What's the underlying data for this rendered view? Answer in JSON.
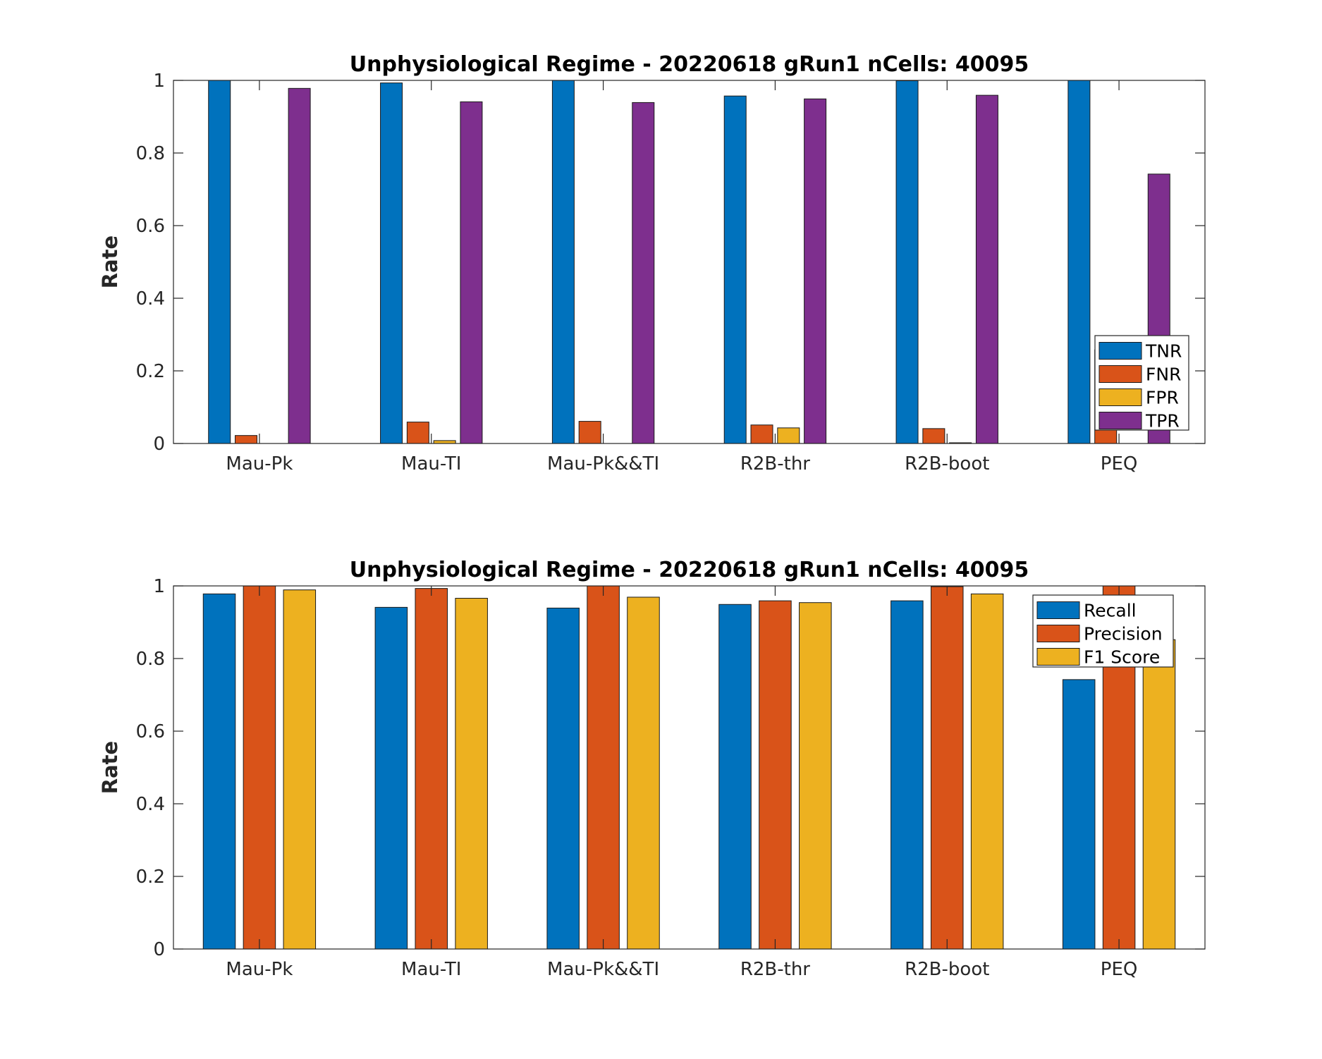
{
  "chart_data": [
    {
      "type": "bar",
      "title": "Unphysiological Regime - 20220618 gRun1 nCells: 40095",
      "xlabel": "",
      "ylabel": "Rate",
      "ylim": [
        0,
        1
      ],
      "yticks": [
        "0",
        "0.2",
        "0.4",
        "0.6",
        "0.8",
        "1"
      ],
      "categories": [
        "Mau-Pk",
        "Mau-TI",
        "Mau-Pk&&TI",
        "R2B-thr",
        "R2B-boot",
        "PEQ"
      ],
      "legend_position": "bottom-right",
      "grid": false,
      "series": [
        {
          "name": "TNR",
          "color": "#0072BD",
          "values": [
            1.0,
            0.993,
            1.0,
            0.957,
            0.999,
            1.0
          ]
        },
        {
          "name": "FNR",
          "color": "#D95319",
          "values": [
            0.022,
            0.059,
            0.061,
            0.051,
            0.041,
            0.258
          ]
        },
        {
          "name": "FPR",
          "color": "#EDB120",
          "values": [
            0.0,
            0.008,
            0.0,
            0.043,
            0.002,
            0.0
          ]
        },
        {
          "name": "TPR",
          "color": "#7E2F8E",
          "values": [
            0.978,
            0.941,
            0.939,
            0.949,
            0.959,
            0.742
          ]
        }
      ]
    },
    {
      "type": "bar",
      "title": "Unphysiological Regime - 20220618 gRun1 nCells: 40095",
      "xlabel": "",
      "ylabel": "Rate",
      "ylim": [
        0,
        1
      ],
      "yticks": [
        "0",
        "0.2",
        "0.4",
        "0.6",
        "0.8",
        "1"
      ],
      "categories": [
        "Mau-Pk",
        "Mau-TI",
        "Mau-Pk&&TI",
        "R2B-thr",
        "R2B-boot",
        "PEQ"
      ],
      "legend_position": "top-right",
      "grid": false,
      "series": [
        {
          "name": "Recall",
          "color": "#0072BD",
          "values": [
            0.978,
            0.941,
            0.939,
            0.949,
            0.959,
            0.742
          ]
        },
        {
          "name": "Precision",
          "color": "#D95319",
          "values": [
            1.0,
            0.993,
            1.0,
            0.959,
            0.998,
            1.0
          ]
        },
        {
          "name": "F1 Score",
          "color": "#EDB120",
          "values": [
            0.989,
            0.966,
            0.969,
            0.954,
            0.978,
            0.852
          ]
        }
      ]
    }
  ]
}
